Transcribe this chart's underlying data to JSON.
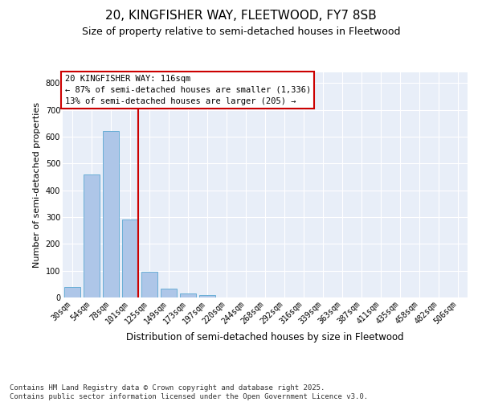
{
  "title1": "20, KINGFISHER WAY, FLEETWOOD, FY7 8SB",
  "title2": "Size of property relative to semi-detached houses in Fleetwood",
  "xlabel": "Distribution of semi-detached houses by size in Fleetwood",
  "ylabel": "Number of semi-detached properties",
  "bins": [
    "30sqm",
    "54sqm",
    "78sqm",
    "101sqm",
    "125sqm",
    "149sqm",
    "173sqm",
    "197sqm",
    "220sqm",
    "244sqm",
    "268sqm",
    "292sqm",
    "316sqm",
    "339sqm",
    "363sqm",
    "387sqm",
    "411sqm",
    "435sqm",
    "458sqm",
    "482sqm",
    "506sqm"
  ],
  "values": [
    40,
    460,
    620,
    290,
    95,
    32,
    15,
    10,
    0,
    0,
    0,
    0,
    0,
    0,
    0,
    0,
    0,
    0,
    0,
    0,
    0
  ],
  "bar_color": "#aec6e8",
  "bar_edge_color": "#6aaed6",
  "red_line_bin_index": 3,
  "annotation_title": "20 KINGFISHER WAY: 116sqm",
  "annotation_line1": "← 87% of semi-detached houses are smaller (1,336)",
  "annotation_line2": "13% of semi-detached houses are larger (205) →",
  "annotation_box_color": "#ffffff",
  "annotation_box_edge_color": "#cc0000",
  "ylim": [
    0,
    840
  ],
  "yticks": [
    0,
    100,
    200,
    300,
    400,
    500,
    600,
    700,
    800
  ],
  "background_color": "#e8eef8",
  "footer": "Contains HM Land Registry data © Crown copyright and database right 2025.\nContains public sector information licensed under the Open Government Licence v3.0.",
  "title1_fontsize": 11,
  "title2_fontsize": 9,
  "footer_fontsize": 6.5,
  "ylabel_fontsize": 8,
  "xlabel_fontsize": 8.5,
  "tick_fontsize": 7,
  "ann_fontsize": 7.5
}
